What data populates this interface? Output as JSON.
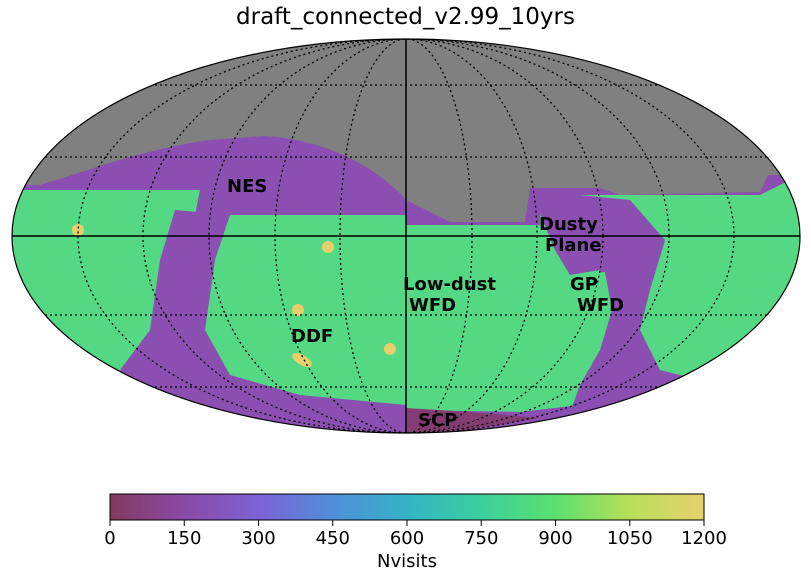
{
  "title": "draft_connected_v2.99_10yrs",
  "regions": [
    {
      "key": "nes",
      "text": [
        "NES"
      ]
    },
    {
      "key": "dusty",
      "text": [
        "Dusty",
        "Plane"
      ]
    },
    {
      "key": "lowdust",
      "text": [
        "Low-dust",
        "WFD"
      ]
    },
    {
      "key": "gp",
      "text": [
        "GP",
        "WFD"
      ]
    },
    {
      "key": "ddf",
      "text": [
        "DDF"
      ]
    },
    {
      "key": "scp",
      "text": [
        "SCP"
      ]
    }
  ],
  "colorbar": {
    "label": "Nvisits",
    "min": 0,
    "max": 1200,
    "ticks": [
      "0",
      "150",
      "300",
      "450",
      "600",
      "750",
      "900",
      "1050",
      "1200"
    ],
    "colors": [
      "#823a5e",
      "#8a4aa6",
      "#7d62d6",
      "#4f8fda",
      "#35b3c6",
      "#3ccf9c",
      "#5ae06f",
      "#b8df59",
      "#e6d26c"
    ]
  },
  "palette": {
    "no_coverage": "#808080",
    "low": "#8a4fb0",
    "wfd": "#55d884",
    "deep": "#e8cf6b"
  }
}
